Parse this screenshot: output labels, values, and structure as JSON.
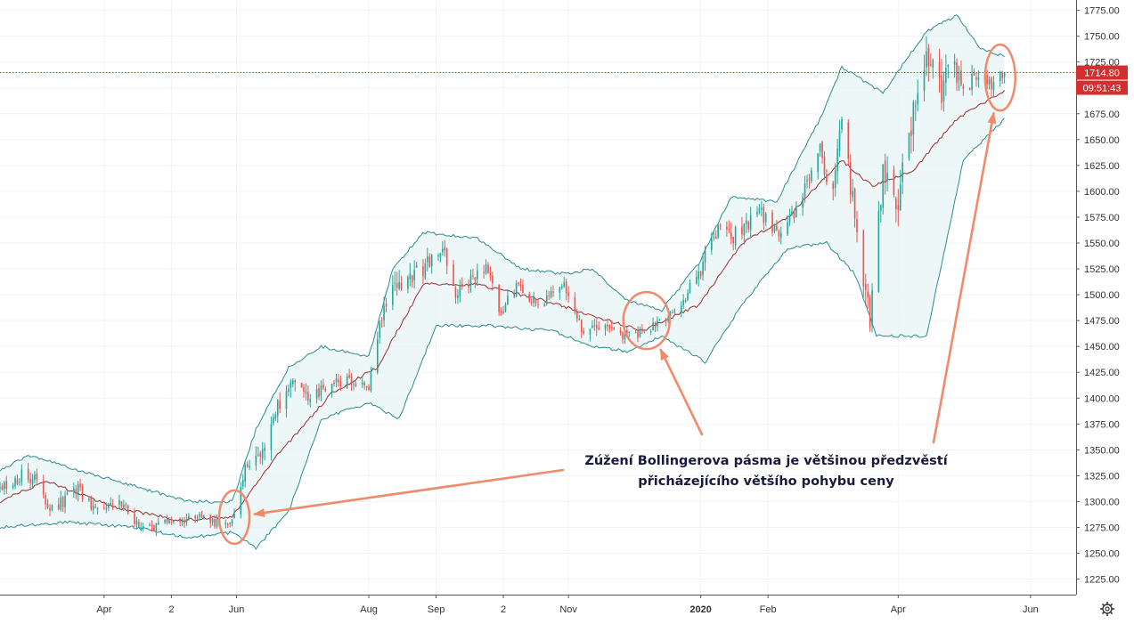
{
  "chart_data": {
    "type": "candlestick",
    "title": "",
    "y_axis": {
      "position": "right",
      "ylim": [
        1210,
        1785
      ],
      "ticks": [
        "1225.00",
        "1250.00",
        "1275.00",
        "1300.00",
        "1325.00",
        "1350.00",
        "1375.00",
        "1400.00",
        "1425.00",
        "1450.00",
        "1475.00",
        "1500.00",
        "1525.00",
        "1550.00",
        "1575.00",
        "1600.00",
        "1625.00",
        "1650.00",
        "1675.00",
        "1700.00",
        "1725.00",
        "1750.00",
        "1775.00"
      ]
    },
    "x_axis": {
      "date_range": [
        "2019-02-12",
        "2020-06-22"
      ],
      "ticks": [
        {
          "label": "Apr",
          "date": "2019-04-01",
          "bold": false
        },
        {
          "label": "2",
          "date": "2019-05-02",
          "bold": false
        },
        {
          "label": "Jun",
          "date": "2019-06-01",
          "bold": false
        },
        {
          "label": "Aug",
          "date": "2019-08-01",
          "bold": false
        },
        {
          "label": "Sep",
          "date": "2019-09-01",
          "bold": false
        },
        {
          "label": "2",
          "date": "2019-10-02",
          "bold": false
        },
        {
          "label": "Nov",
          "date": "2019-11-01",
          "bold": false
        },
        {
          "label": "2020",
          "date": "2020-01-01",
          "bold": true
        },
        {
          "label": "Feb",
          "date": "2020-02-01",
          "bold": false
        },
        {
          "label": "Apr",
          "date": "2020-04-01",
          "bold": false
        },
        {
          "label": "Jun",
          "date": "2020-06-01",
          "bold": false
        }
      ]
    },
    "price_key_points": [
      [
        "2019-02-12",
        1312
      ],
      [
        "2019-02-22",
        1325
      ],
      [
        "2019-03-01",
        1322
      ],
      [
        "2019-03-07",
        1290
      ],
      [
        "2019-03-20",
        1312
      ],
      [
        "2019-03-28",
        1292
      ],
      [
        "2019-04-08",
        1298
      ],
      [
        "2019-04-16",
        1280
      ],
      [
        "2019-04-23",
        1275
      ],
      [
        "2019-05-01",
        1280
      ],
      [
        "2019-05-15",
        1285
      ],
      [
        "2019-05-22",
        1280
      ],
      [
        "2019-05-30",
        1283
      ],
      [
        "2019-06-05",
        1330
      ],
      [
        "2019-06-12",
        1345
      ],
      [
        "2019-06-20",
        1390
      ],
      [
        "2019-06-26",
        1410
      ],
      [
        "2019-07-05",
        1400
      ],
      [
        "2019-07-15",
        1415
      ],
      [
        "2019-07-25",
        1418
      ],
      [
        "2019-08-01",
        1412
      ],
      [
        "2019-08-07",
        1480
      ],
      [
        "2019-08-13",
        1505
      ],
      [
        "2019-08-23",
        1520
      ],
      [
        "2019-09-04",
        1545
      ],
      [
        "2019-09-10",
        1500
      ],
      [
        "2019-09-24",
        1530
      ],
      [
        "2019-10-01",
        1480
      ],
      [
        "2019-10-08",
        1510
      ],
      [
        "2019-10-18",
        1490
      ],
      [
        "2019-10-30",
        1510
      ],
      [
        "2019-11-07",
        1465
      ],
      [
        "2019-11-14",
        1470
      ],
      [
        "2019-11-25",
        1460
      ],
      [
        "2019-12-06",
        1465
      ],
      [
        "2019-12-17",
        1478
      ],
      [
        "2019-12-24",
        1495
      ],
      [
        "2019-12-31",
        1520
      ],
      [
        "2020-01-08",
        1560
      ],
      [
        "2020-01-15",
        1555
      ],
      [
        "2020-01-28",
        1580
      ],
      [
        "2020-02-05",
        1560
      ],
      [
        "2020-02-14",
        1580
      ],
      [
        "2020-02-24",
        1645
      ],
      [
        "2020-03-02",
        1595
      ],
      [
        "2020-03-06",
        1675
      ],
      [
        "2020-03-12",
        1575
      ],
      [
        "2020-03-16",
        1510
      ],
      [
        "2020-03-19",
        1475
      ],
      [
        "2020-03-25",
        1620
      ],
      [
        "2020-04-01",
        1590
      ],
      [
        "2020-04-06",
        1655
      ],
      [
        "2020-04-14",
        1735
      ],
      [
        "2020-04-21",
        1690
      ],
      [
        "2020-04-24",
        1725
      ],
      [
        "2020-05-01",
        1700
      ],
      [
        "2020-05-08",
        1710
      ],
      [
        "2020-05-14",
        1700
      ],
      [
        "2020-05-20",
        1714.8
      ]
    ],
    "bollinger_bands": {
      "upper": [
        [
          "2019-02-12",
          1330
        ],
        [
          "2019-02-25",
          1345
        ],
        [
          "2019-03-20",
          1330
        ],
        [
          "2019-04-15",
          1315
        ],
        [
          "2019-05-10",
          1300
        ],
        [
          "2019-05-30",
          1300
        ],
        [
          "2019-06-10",
          1370
        ],
        [
          "2019-06-25",
          1430
        ],
        [
          "2019-07-10",
          1450
        ],
        [
          "2019-08-01",
          1440
        ],
        [
          "2019-08-12",
          1525
        ],
        [
          "2019-08-26",
          1560
        ],
        [
          "2019-09-20",
          1555
        ],
        [
          "2019-10-10",
          1525
        ],
        [
          "2019-10-31",
          1520
        ],
        [
          "2019-11-12",
          1525
        ],
        [
          "2019-11-28",
          1495
        ],
        [
          "2019-12-14",
          1485
        ],
        [
          "2019-12-31",
          1530
        ],
        [
          "2020-01-15",
          1595
        ],
        [
          "2020-02-05",
          1590
        ],
        [
          "2020-02-25",
          1670
        ],
        [
          "2020-03-06",
          1720
        ],
        [
          "2020-03-25",
          1695
        ],
        [
          "2020-04-14",
          1755
        ],
        [
          "2020-04-28",
          1770
        ],
        [
          "2020-05-08",
          1740
        ],
        [
          "2020-05-20",
          1730
        ]
      ],
      "middle": [
        [
          "2019-02-12",
          1300
        ],
        [
          "2019-03-05",
          1320
        ],
        [
          "2019-04-05",
          1295
        ],
        [
          "2019-05-05",
          1282
        ],
        [
          "2019-05-30",
          1285
        ],
        [
          "2019-06-20",
          1345
        ],
        [
          "2019-07-15",
          1405
        ],
        [
          "2019-08-05",
          1430
        ],
        [
          "2019-08-26",
          1510
        ],
        [
          "2019-09-20",
          1510
        ],
        [
          "2019-10-20",
          1495
        ],
        [
          "2019-11-12",
          1480
        ],
        [
          "2019-12-05",
          1465
        ],
        [
          "2019-12-31",
          1490
        ],
        [
          "2020-01-20",
          1550
        ],
        [
          "2020-02-10",
          1575
        ],
        [
          "2020-03-06",
          1630
        ],
        [
          "2020-03-20",
          1605
        ],
        [
          "2020-04-08",
          1620
        ],
        [
          "2020-04-28",
          1670
        ],
        [
          "2020-05-20",
          1698
        ]
      ],
      "lower": [
        [
          "2019-02-12",
          1275
        ],
        [
          "2019-03-15",
          1280
        ],
        [
          "2019-04-15",
          1275
        ],
        [
          "2019-05-10",
          1265
        ],
        [
          "2019-05-30",
          1270
        ],
        [
          "2019-06-10",
          1255
        ],
        [
          "2019-06-25",
          1290
        ],
        [
          "2019-07-10",
          1380
        ],
        [
          "2019-08-01",
          1395
        ],
        [
          "2019-08-15",
          1380
        ],
        [
          "2019-09-01",
          1470
        ],
        [
          "2019-09-25",
          1470
        ],
        [
          "2019-10-25",
          1465
        ],
        [
          "2019-11-12",
          1450
        ],
        [
          "2019-11-28",
          1445
        ],
        [
          "2019-12-14",
          1460
        ],
        [
          "2020-01-03",
          1435
        ],
        [
          "2020-01-20",
          1490
        ],
        [
          "2020-02-10",
          1545
        ],
        [
          "2020-02-28",
          1550
        ],
        [
          "2020-03-12",
          1520
        ],
        [
          "2020-03-22",
          1460
        ],
        [
          "2020-04-14",
          1460
        ],
        [
          "2020-05-01",
          1630
        ],
        [
          "2020-05-20",
          1670
        ]
      ]
    },
    "last_price": "1714.80",
    "last_price_value": 1714.8,
    "countdown": "09:51:43",
    "annotation": {
      "lines": [
        "Zúžení Bollingerova pásma je většinou předzvěstí",
        "přicházejícího většího pohybu ceny"
      ]
    },
    "highlights": [
      {
        "center_date": "2019-05-31",
        "center_price": 1285
      },
      {
        "center_date": "2019-12-07",
        "center_price": 1475
      },
      {
        "center_date": "2020-05-18",
        "center_price": 1710
      }
    ],
    "arrows": [
      {
        "from_text": "line1-left",
        "to_highlight": 0
      },
      {
        "from_text": "line1-center",
        "to_highlight": 1
      },
      {
        "from_text": "line1-right",
        "to_highlight": 2
      }
    ],
    "colors": {
      "up": "#26a69a",
      "down": "#ef5350",
      "band": "#2b8c8c",
      "band_fill": "#e8f4f4",
      "middle": "#9b2d2d",
      "accent": "#f08a6a",
      "price_line": "#d32f2f"
    }
  }
}
